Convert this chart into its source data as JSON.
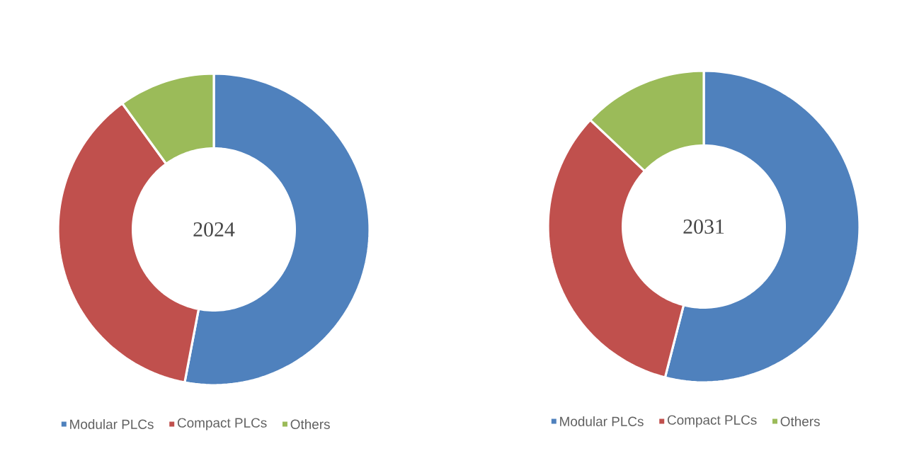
{
  "chart_data": [
    {
      "type": "donut",
      "title": "2024",
      "categories": [
        "Modular PLCs",
        "Compact PLCs",
        "Others"
      ],
      "values": [
        53,
        37,
        10
      ],
      "colors": [
        "#4f81bd",
        "#c0504d",
        "#9bbb59"
      ],
      "legend": "bottom"
    },
    {
      "type": "donut",
      "title": "2031",
      "categories": [
        "Modular PLCs",
        "Compact PLCs",
        "Others"
      ],
      "values": [
        54,
        33,
        13
      ],
      "colors": [
        "#4f81bd",
        "#c0504d",
        "#9bbb59"
      ],
      "legend": "bottom"
    }
  ]
}
